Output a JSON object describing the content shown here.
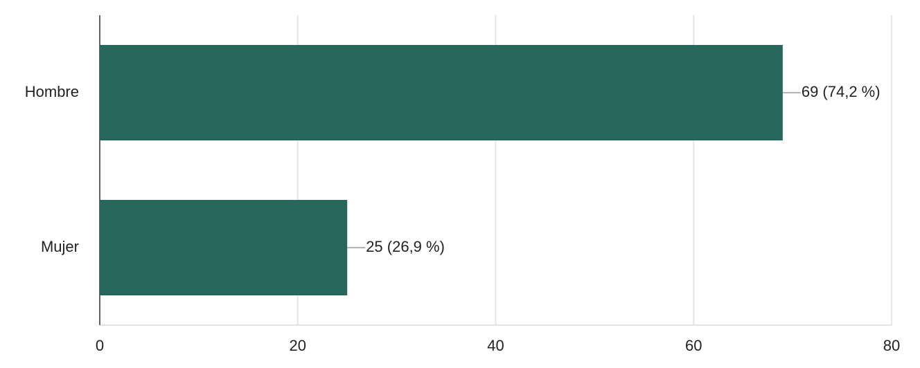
{
  "chart_data": {
    "type": "bar",
    "orientation": "horizontal",
    "categories": [
      "Hombre",
      "Mujer"
    ],
    "values": [
      69,
      25
    ],
    "value_labels": [
      "69 (74,2 %)",
      "25 (26,9 %)"
    ],
    "color": "#26665d",
    "xlim": [
      0,
      80
    ],
    "xticks": [
      0,
      20,
      40,
      60,
      80
    ],
    "grid": true
  }
}
